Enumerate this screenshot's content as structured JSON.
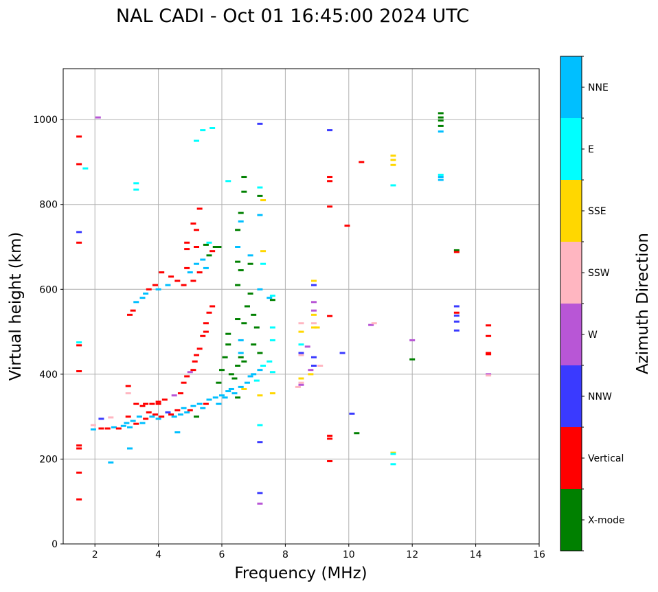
{
  "chart_data": {
    "type": "scatter",
    "title": "NAL CADI - Oct 01 16:45:00 2024 UTC",
    "xlabel": "Frequency (MHz)",
    "ylabel": "Virtual height (km)",
    "xlim": [
      1,
      16
    ],
    "ylim": [
      0,
      1120
    ],
    "xticks": [
      2,
      4,
      6,
      8,
      10,
      12,
      14,
      16
    ],
    "yticks": [
      0,
      200,
      400,
      600,
      800,
      1000
    ],
    "grid": true,
    "colorbar": {
      "label": "Azimuth Direction",
      "categories": [
        "X-mode",
        "Vertical",
        "NNW",
        "W",
        "SSW",
        "SSE",
        "E",
        "NNE"
      ],
      "colors": [
        "#008000",
        "#ff0000",
        "#3a3aff",
        "#b856d6",
        "#ffb6c1",
        "#ffd700",
        "#00ffff",
        "#00bfff"
      ]
    },
    "point_format": [
      "frequency_mhz",
      "height_km",
      "direction_index"
    ],
    "points": [
      [
        1.5,
        960,
        1
      ],
      [
        1.5,
        895,
        1
      ],
      [
        1.5,
        735,
        2
      ],
      [
        1.5,
        710,
        1
      ],
      [
        1.5,
        475,
        6
      ],
      [
        1.5,
        468,
        1
      ],
      [
        1.5,
        407,
        1
      ],
      [
        1.5,
        232,
        1
      ],
      [
        1.5,
        225,
        1
      ],
      [
        1.5,
        168,
        1
      ],
      [
        1.5,
        105,
        1
      ],
      [
        2.1,
        1005,
        3
      ],
      [
        1.7,
        885,
        6
      ],
      [
        1.95,
        270,
        7
      ],
      [
        1.95,
        280,
        4
      ],
      [
        2.2,
        272,
        1
      ],
      [
        2.2,
        295,
        2
      ],
      [
        2.4,
        272,
        1
      ],
      [
        2.5,
        298,
        4
      ],
      [
        2.6,
        275,
        7
      ],
      [
        2.75,
        272,
        1
      ],
      [
        2.9,
        278,
        7
      ],
      [
        3.0,
        285,
        7
      ],
      [
        3.05,
        300,
        1
      ],
      [
        3.1,
        275,
        7
      ],
      [
        3.2,
        290,
        7
      ],
      [
        3.3,
        283,
        1
      ],
      [
        3.4,
        300,
        7
      ],
      [
        3.5,
        285,
        7
      ],
      [
        3.6,
        295,
        1
      ],
      [
        3.7,
        310,
        1
      ],
      [
        3.8,
        300,
        7
      ],
      [
        3.9,
        305,
        1
      ],
      [
        4.0,
        295,
        7
      ],
      [
        4.0,
        330,
        1
      ],
      [
        4.1,
        300,
        1
      ],
      [
        4.3,
        310,
        2
      ],
      [
        4.4,
        305,
        1
      ],
      [
        4.5,
        300,
        7
      ],
      [
        4.6,
        315,
        1
      ],
      [
        4.7,
        305,
        7
      ],
      [
        4.8,
        320,
        7
      ],
      [
        4.9,
        310,
        7
      ],
      [
        5.0,
        315,
        1
      ],
      [
        5.1,
        325,
        7
      ],
      [
        5.2,
        300,
        0
      ],
      [
        5.3,
        330,
        7
      ],
      [
        5.4,
        320,
        7
      ],
      [
        5.5,
        330,
        1
      ],
      [
        5.6,
        340,
        7
      ],
      [
        5.8,
        345,
        7
      ],
      [
        5.9,
        330,
        7
      ],
      [
        6.0,
        350,
        7
      ],
      [
        6.1,
        345,
        7
      ],
      [
        6.2,
        360,
        7
      ],
      [
        6.3,
        365,
        7
      ],
      [
        6.4,
        355,
        7
      ],
      [
        6.5,
        345,
        0
      ],
      [
        6.6,
        370,
        7
      ],
      [
        6.7,
        365,
        5
      ],
      [
        6.8,
        380,
        7
      ],
      [
        6.9,
        395,
        7
      ],
      [
        7.0,
        400,
        7
      ],
      [
        7.1,
        385,
        6
      ],
      [
        7.2,
        410,
        7
      ],
      [
        7.3,
        420,
        6
      ],
      [
        7.5,
        430,
        6
      ],
      [
        7.6,
        405,
        6
      ],
      [
        7.6,
        480,
        6
      ],
      [
        7.6,
        510,
        6
      ],
      [
        3.05,
        372,
        1
      ],
      [
        3.05,
        355,
        4
      ],
      [
        3.3,
        330,
        1
      ],
      [
        3.5,
        325,
        1
      ],
      [
        3.6,
        330,
        1
      ],
      [
        3.8,
        330,
        1
      ],
      [
        4.0,
        335,
        1
      ],
      [
        4.2,
        340,
        1
      ],
      [
        4.5,
        350,
        3
      ],
      [
        4.7,
        355,
        1
      ],
      [
        4.8,
        380,
        1
      ],
      [
        4.9,
        395,
        1
      ],
      [
        5.0,
        405,
        3
      ],
      [
        5.1,
        410,
        1
      ],
      [
        5.15,
        430,
        1
      ],
      [
        5.2,
        445,
        1
      ],
      [
        5.3,
        460,
        1
      ],
      [
        5.4,
        490,
        1
      ],
      [
        5.5,
        500,
        1
      ],
      [
        5.5,
        520,
        1
      ],
      [
        5.6,
        545,
        1
      ],
      [
        5.7,
        560,
        1
      ],
      [
        5.9,
        380,
        0
      ],
      [
        6.0,
        410,
        0
      ],
      [
        6.1,
        440,
        0
      ],
      [
        6.2,
        470,
        0
      ],
      [
        6.2,
        495,
        0
      ],
      [
        6.3,
        400,
        0
      ],
      [
        6.4,
        390,
        0
      ],
      [
        6.5,
        420,
        0
      ],
      [
        6.5,
        530,
        0
      ],
      [
        6.6,
        440,
        0
      ],
      [
        6.6,
        450,
        7
      ],
      [
        6.6,
        480,
        7
      ],
      [
        6.7,
        430,
        0
      ],
      [
        6.7,
        520,
        0
      ],
      [
        6.8,
        560,
        0
      ],
      [
        6.9,
        590,
        0
      ],
      [
        7.0,
        540,
        0
      ],
      [
        7.0,
        470,
        0
      ],
      [
        7.1,
        510,
        0
      ],
      [
        7.2,
        450,
        0
      ],
      [
        6.5,
        610,
        0
      ],
      [
        6.5,
        665,
        0
      ],
      [
        6.5,
        700,
        7
      ],
      [
        6.6,
        645,
        0
      ],
      [
        6.5,
        740,
        0
      ],
      [
        6.6,
        780,
        0
      ],
      [
        6.6,
        760,
        7
      ],
      [
        6.7,
        865,
        0
      ],
      [
        6.7,
        830,
        0
      ],
      [
        6.2,
        855,
        6
      ],
      [
        6.9,
        680,
        7
      ],
      [
        6.9,
        660,
        0
      ],
      [
        7.2,
        820,
        0
      ],
      [
        7.2,
        775,
        7
      ],
      [
        7.2,
        840,
        6
      ],
      [
        7.3,
        810,
        5
      ],
      [
        7.3,
        690,
        5
      ],
      [
        7.3,
        660,
        6
      ],
      [
        7.2,
        600,
        7
      ],
      [
        7.5,
        580,
        7
      ],
      [
        7.6,
        575,
        0
      ],
      [
        7.6,
        585,
        6
      ],
      [
        7.2,
        280,
        6
      ],
      [
        7.2,
        240,
        2
      ],
      [
        7.2,
        120,
        2
      ],
      [
        7.2,
        95,
        3
      ],
      [
        7.2,
        990,
        2
      ],
      [
        7.6,
        355,
        5
      ],
      [
        7.2,
        350,
        5
      ],
      [
        3.1,
        540,
        1
      ],
      [
        3.2,
        550,
        1
      ],
      [
        3.3,
        570,
        7
      ],
      [
        3.5,
        580,
        7
      ],
      [
        3.6,
        590,
        7
      ],
      [
        3.7,
        600,
        1
      ],
      [
        3.9,
        610,
        1
      ],
      [
        4.0,
        600,
        7
      ],
      [
        4.1,
        640,
        1
      ],
      [
        4.3,
        610,
        7
      ],
      [
        4.4,
        630,
        1
      ],
      [
        4.6,
        620,
        1
      ],
      [
        4.8,
        610,
        1
      ],
      [
        4.9,
        650,
        1
      ],
      [
        5.0,
        640,
        7
      ],
      [
        5.1,
        620,
        1
      ],
      [
        5.2,
        660,
        7
      ],
      [
        5.2,
        700,
        1
      ],
      [
        5.3,
        640,
        1
      ],
      [
        5.4,
        670,
        7
      ],
      [
        5.5,
        650,
        7
      ],
      [
        5.6,
        680,
        0
      ],
      [
        5.7,
        690,
        1
      ],
      [
        5.8,
        700,
        0
      ],
      [
        5.9,
        700,
        0
      ],
      [
        5.2,
        740,
        1
      ],
      [
        5.3,
        790,
        1
      ],
      [
        5.1,
        755,
        1
      ],
      [
        5.2,
        950,
        6
      ],
      [
        5.4,
        975,
        6
      ],
      [
        5.7,
        980,
        6
      ],
      [
        5.6,
        710,
        6
      ],
      [
        5.5,
        705,
        0
      ],
      [
        4.9,
        710,
        1
      ],
      [
        4.9,
        695,
        1
      ],
      [
        3.3,
        850,
        6
      ],
      [
        3.3,
        835,
        6
      ],
      [
        3.1,
        225,
        7
      ],
      [
        2.5,
        192,
        7
      ],
      [
        4.6,
        263,
        7
      ],
      [
        8.4,
        370,
        4
      ],
      [
        8.5,
        390,
        5
      ],
      [
        8.5,
        380,
        4
      ],
      [
        8.5,
        375,
        3
      ],
      [
        8.5,
        450,
        2
      ],
      [
        8.5,
        470,
        6
      ],
      [
        8.5,
        445,
        4
      ],
      [
        8.5,
        520,
        4
      ],
      [
        8.5,
        500,
        5
      ],
      [
        8.7,
        465,
        3
      ],
      [
        8.8,
        400,
        5
      ],
      [
        8.8,
        410,
        3
      ],
      [
        8.9,
        420,
        2
      ],
      [
        8.9,
        440,
        2
      ],
      [
        8.9,
        510,
        5
      ],
      [
        8.9,
        520,
        4
      ],
      [
        8.9,
        540,
        5
      ],
      [
        8.9,
        550,
        3
      ],
      [
        8.9,
        570,
        3
      ],
      [
        8.9,
        610,
        2
      ],
      [
        8.9,
        620,
        5
      ],
      [
        9.1,
        420,
        4
      ],
      [
        9.0,
        510,
        5
      ],
      [
        9.4,
        975,
        2
      ],
      [
        9.4,
        865,
        1
      ],
      [
        9.4,
        855,
        1
      ],
      [
        9.4,
        795,
        1
      ],
      [
        9.4,
        537,
        1
      ],
      [
        9.4,
        255,
        1
      ],
      [
        9.4,
        248,
        1
      ],
      [
        9.4,
        195,
        1
      ],
      [
        9.8,
        450,
        2
      ],
      [
        9.95,
        750,
        1
      ],
      [
        10.1,
        307,
        2
      ],
      [
        10.25,
        261,
        0
      ],
      [
        10.4,
        900,
        1
      ],
      [
        10.7,
        516,
        3
      ],
      [
        10.8,
        520,
        4
      ],
      [
        11.4,
        915,
        5
      ],
      [
        11.4,
        905,
        5
      ],
      [
        11.4,
        893,
        5
      ],
      [
        11.4,
        845,
        6
      ],
      [
        11.4,
        215,
        5
      ],
      [
        11.4,
        212,
        6
      ],
      [
        11.4,
        188,
        6
      ],
      [
        12.0,
        480,
        3
      ],
      [
        12.0,
        435,
        0
      ],
      [
        12.9,
        1015,
        0
      ],
      [
        12.9,
        1005,
        0
      ],
      [
        12.9,
        998,
        0
      ],
      [
        12.9,
        985,
        0
      ],
      [
        12.9,
        972,
        7
      ],
      [
        12.9,
        870,
        6
      ],
      [
        12.9,
        865,
        7
      ],
      [
        12.9,
        858,
        7
      ],
      [
        13.4,
        692,
        0
      ],
      [
        13.4,
        688,
        1
      ],
      [
        13.4,
        560,
        2
      ],
      [
        13.4,
        545,
        1
      ],
      [
        13.4,
        538,
        2
      ],
      [
        13.4,
        524,
        2
      ],
      [
        13.4,
        503,
        2
      ],
      [
        14.4,
        515,
        1
      ],
      [
        14.4,
        490,
        1
      ],
      [
        14.4,
        450,
        1
      ],
      [
        14.4,
        447,
        1
      ],
      [
        14.4,
        400,
        3
      ],
      [
        14.4,
        397,
        4
      ]
    ]
  }
}
